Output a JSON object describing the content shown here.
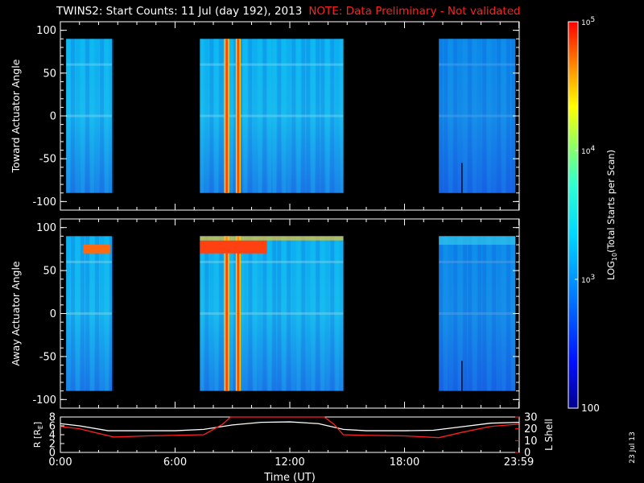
{
  "title": {
    "main": "TWINS2: Start Counts: 11 Jul (day 192), 2013",
    "note": "NOTE: Data Preliminary - Not validated",
    "note_color": "#ff2020"
  },
  "chart_data": [
    {
      "type": "heatmap",
      "panel": "toward",
      "ylabel": "Toward Actuator Angle",
      "ylim": [
        -110,
        110
      ],
      "yticks": [
        100,
        50,
        0,
        -50,
        -100
      ],
      "ytick_labels": [
        "100",
        "50",
        "0",
        "-50",
        "-100"
      ],
      "xlim_hours": [
        0,
        24
      ],
      "data_segments_hours": [
        [
          0.3,
          2.7
        ],
        [
          7.3,
          14.8
        ],
        [
          19.8,
          23.8
        ]
      ],
      "angle_range": [
        -90,
        90
      ],
      "bright_bands_hours": [
        8.7,
        9.3
      ],
      "levels": "log10 counts ~3.0 (cyan/blue) with red spikes near 8.7-9.3 UT"
    },
    {
      "type": "heatmap",
      "panel": "away",
      "ylabel": "Away Actuator Angle",
      "ylim": [
        -110,
        110
      ],
      "yticks": [
        100,
        50,
        0,
        -50,
        -100
      ],
      "ytick_labels": [
        "100",
        "50",
        "0",
        "-50",
        "-100"
      ],
      "xlim_hours": [
        0,
        24
      ],
      "data_segments_hours": [
        [
          0.3,
          2.7
        ],
        [
          7.3,
          14.8
        ],
        [
          19.8,
          23.8
        ]
      ],
      "angle_range": [
        -90,
        90
      ],
      "bright_bands_hours": [
        8.7,
        9.3
      ],
      "levels": "log10 counts ~3.0 with red band near 75 deg at 7.3-10.8 UT"
    },
    {
      "type": "line",
      "panel": "orbit",
      "ylabel_left": "R [R",
      "ylabel_left_sub": "E",
      "ylabel_left_end": "]",
      "ylabel_right": "L Shell",
      "xlabel": "Time (UT)",
      "xtick_labels": [
        "0:00",
        "6:00",
        "12:00",
        "18:00",
        "23:59"
      ],
      "xtick_hours": [
        0,
        6,
        12,
        18,
        23.98
      ],
      "ylim_left": [
        0,
        8
      ],
      "yticks_left": [
        "0",
        "2",
        "4",
        "6",
        "8"
      ],
      "ylim_right": [
        0,
        30
      ],
      "yticks_right": [
        "0",
        "10",
        "20",
        "30"
      ],
      "series": [
        {
          "name": "R",
          "color": "#ffffff",
          "x": [
            0,
            1,
            2.5,
            4,
            6,
            7.5,
            9,
            10.5,
            12,
            13.5,
            14.8,
            16,
            18,
            19.5,
            21,
            22.5,
            23.98
          ],
          "y": [
            6.5,
            6.0,
            4.9,
            4.9,
            4.9,
            5.2,
            6.2,
            6.8,
            6.9,
            6.5,
            5.2,
            4.9,
            4.9,
            5.0,
            5.8,
            6.6,
            6.8
          ]
        },
        {
          "name": "L Shell",
          "color": "#ff2020",
          "x": [
            0,
            1,
            2.8,
            4.5,
            6,
            7.5,
            8.5,
            8.9,
            13.8,
            14.3,
            14.8,
            16,
            18,
            19.8,
            21,
            22.5,
            23.98
          ],
          "y": [
            22,
            20,
            13,
            14,
            14.5,
            15,
            24,
            30,
            30,
            24,
            15,
            14.5,
            14,
            12.5,
            17,
            22,
            24
          ]
        }
      ]
    }
  ],
  "colorbar": {
    "label_prefix": "LOG",
    "label_sub": "10",
    "label_rest": "(Total Starts per Scan)",
    "tick_100": "100",
    "tick_e3_base": "10",
    "tick_e3_exp": "3",
    "tick_e4_base": "10",
    "tick_e4_exp": "4",
    "tick_e5_base": "10",
    "tick_e5_exp": "5"
  },
  "date_stamp": "23 Jul 13"
}
